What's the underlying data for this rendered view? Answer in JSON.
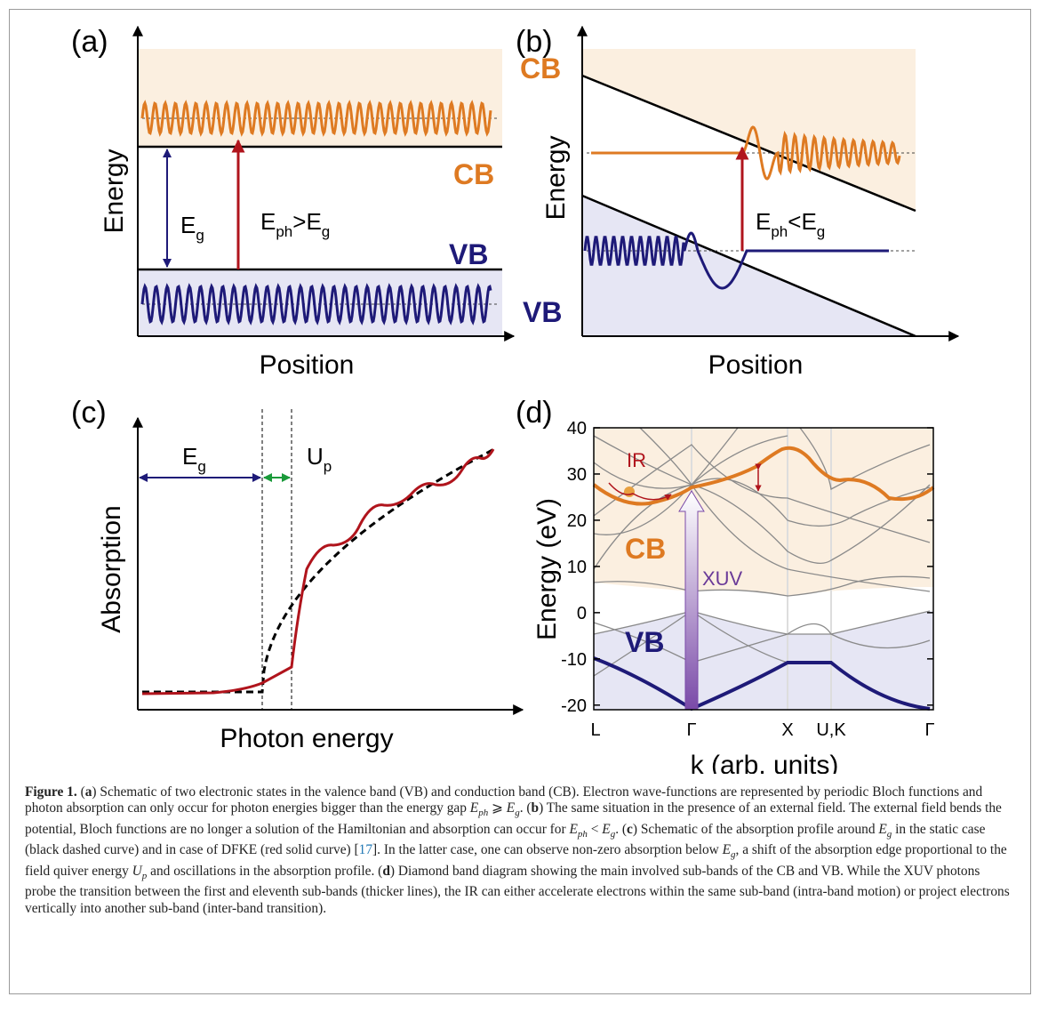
{
  "panel_a": {
    "label": "(a)",
    "y_label": "Energy",
    "x_label": "Position",
    "cb": "CB",
    "vb": "VB",
    "gap": [
      "E",
      "g"
    ],
    "photon": [
      "E",
      "ph",
      ">E",
      "g"
    ]
  },
  "panel_b": {
    "label": "(b)",
    "y_label": "Energy",
    "x_label": "Position",
    "cb": "CB",
    "vb": "VB",
    "photon": [
      "E",
      "ph",
      "<E",
      "g"
    ]
  },
  "panel_c": {
    "label": "(c)",
    "y_label": "Absorption",
    "x_label": "Photon energy",
    "gap": [
      "E",
      "g"
    ],
    "up": [
      "U",
      "p"
    ]
  },
  "panel_d": {
    "label": "(d)",
    "y_label": "Energy (eV)",
    "x_label": "k (arb. units)",
    "ylim": [
      -21,
      40
    ],
    "yticks": [
      -20,
      -10,
      0,
      10,
      20,
      30,
      40
    ],
    "k_points": [
      "L",
      "Γ",
      "X",
      "U,K",
      "Γ"
    ],
    "cb": "CB",
    "vb": "VB",
    "ir": "IR",
    "xuv": "XUV"
  },
  "caption": [
    "Figure 1.",
    " (",
    "a",
    ") Schematic of two electronic states in the valence band (VB) and conduction band (CB). Electron wave-functions are represented by periodic Bloch functions and photon absorption can only occur for photon energies bigger than the energy gap ",
    "E",
    "ph",
    " ⩾ ",
    "E",
    "g",
    ". (",
    "b",
    ") The same situation in the presence of an external field. The external field bends the potential, Bloch functions are no longer a solution of the Hamiltonian and absorption can occur for ",
    "E",
    "ph",
    " < ",
    "E",
    "g",
    ". (",
    "c",
    ") Schematic of the absorption profile around ",
    "E",
    "g",
    " in the static case (black dashed curve) and in case of DFKE (red solid curve) [",
    "17",
    "]. In the latter case, one can observe non-zero absorption below ",
    "E",
    "g",
    ", a shift of the absorption edge proportional to the field quiver energy ",
    "U",
    "p",
    " and oscillations in the absorption profile. (",
    "d",
    ") Diamond band diagram showing the main involved sub-bands of the CB and VB. While the XUV photons probe the transition between the first and eleventh sub-bands (thicker lines), the IR can either accelerate electrons within the same sub-band (intra-band motion) or project electrons vertically into another sub-band (inter-band transition)."
  ]
}
